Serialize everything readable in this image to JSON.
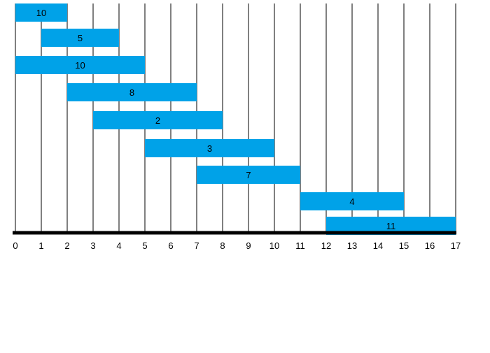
{
  "chart_data": {
    "type": "bar",
    "orientation": "horizontal",
    "title": "",
    "xlabel": "",
    "ylabel": "",
    "xlim": [
      0,
      17
    ],
    "x_ticks": [
      "0",
      "1",
      "2",
      "3",
      "4",
      "5",
      "6",
      "7",
      "8",
      "9",
      "10",
      "11",
      "12",
      "13",
      "14",
      "15",
      "16",
      "17"
    ],
    "grid": "vertical lines at every integer",
    "legend": "none",
    "bar_color": "#00a2e8",
    "axis_color": "#000000",
    "bars": [
      {
        "label": "10",
        "start": 0,
        "end": 2
      },
      {
        "label": "5",
        "start": 1,
        "end": 4
      },
      {
        "label": "10",
        "start": 0,
        "end": 5
      },
      {
        "label": "8",
        "start": 2,
        "end": 7
      },
      {
        "label": "2",
        "start": 3,
        "end": 8
      },
      {
        "label": "3",
        "start": 5,
        "end": 10
      },
      {
        "label": "7",
        "start": 7,
        "end": 11
      },
      {
        "label": "4",
        "start": 11,
        "end": 15
      },
      {
        "label": "11",
        "start": 12,
        "end": 17
      }
    ]
  }
}
